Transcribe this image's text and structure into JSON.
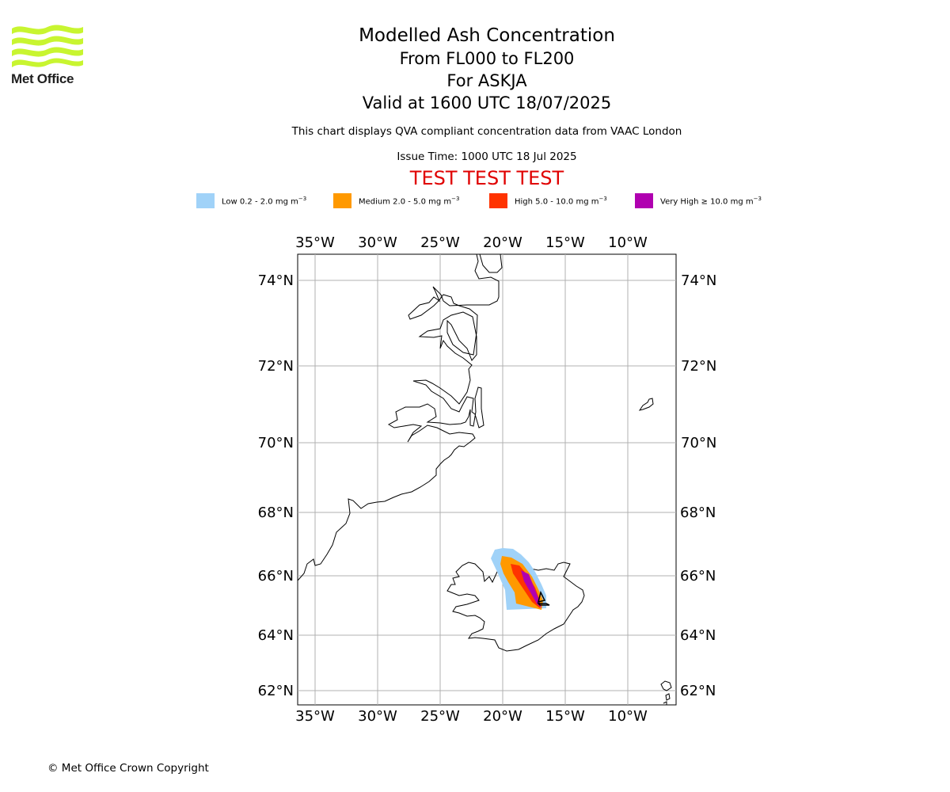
{
  "logo": {
    "text": "Met Office",
    "color": "#c8f530"
  },
  "title": {
    "line1": "Modelled Ash Concentration",
    "line2": "From FL000 to FL200",
    "line3": "For ASKJA",
    "line4": "Valid at 1600 UTC 18/07/2025"
  },
  "note": "This chart displays QVA compliant concentration data from VAAC London",
  "issue_time": "Issue Time: 1000 UTC 18 Jul 2025",
  "test_banner": "TEST TEST TEST",
  "legend": [
    {
      "label": "Low 0.2 - 2.0 mg m",
      "sup": "−3",
      "color": "#a0d2f8"
    },
    {
      "label": "Medium 2.0 - 5.0 mg m",
      "sup": "−3",
      "color": "#ff9900"
    },
    {
      "label": "High 5.0 - 10.0 mg m",
      "sup": "−3",
      "color": "#ff3300"
    },
    {
      "label": "Very High ≥ 10.0 mg m",
      "sup": "−3",
      "color": "#b000b0"
    }
  ],
  "map": {
    "lon_labels": [
      "35°W",
      "30°W",
      "25°W",
      "20°W",
      "15°W",
      "10°W"
    ],
    "lat_labels": [
      "74°N",
      "72°N",
      "70°N",
      "68°N",
      "66°N",
      "64°N",
      "62°N"
    ],
    "volcano_marker": "triangle"
  },
  "copyright": "© Met Office Crown Copyright"
}
